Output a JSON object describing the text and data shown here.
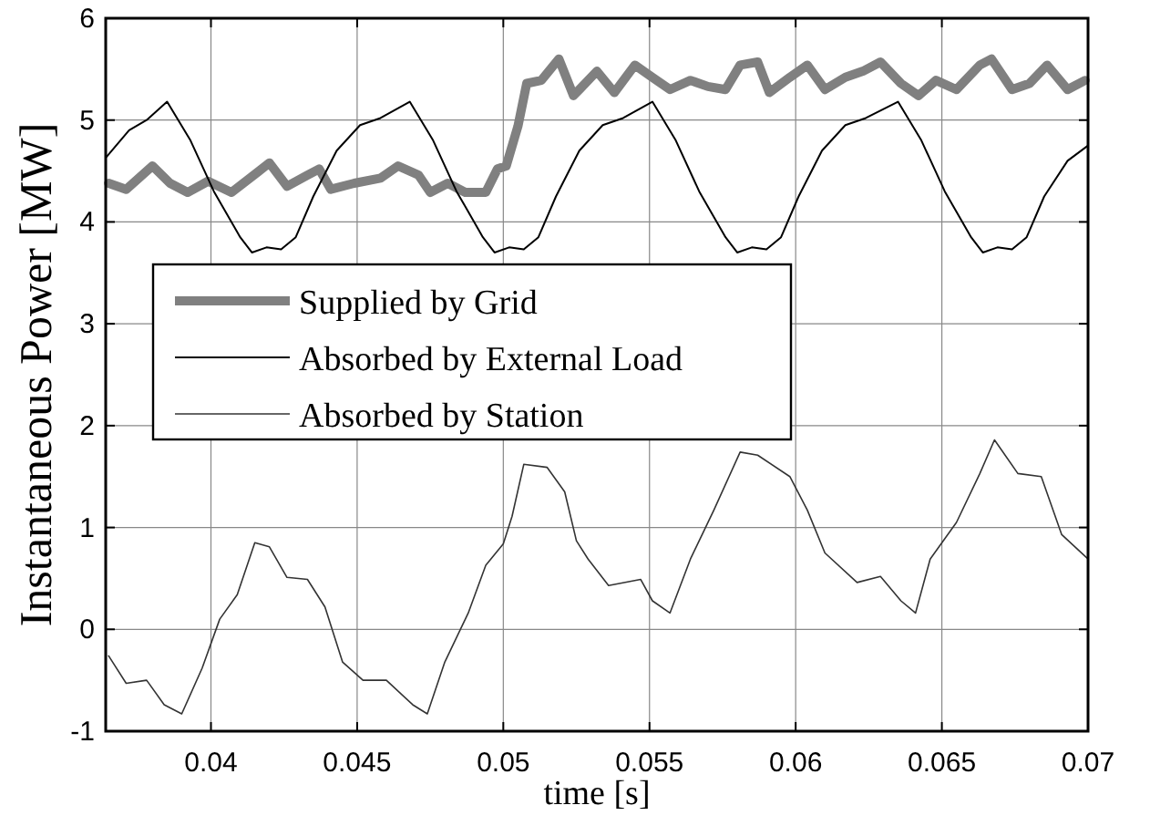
{
  "chart_data": {
    "type": "line",
    "xlabel": "time [s]",
    "ylabel": "Instantaneous Power [MW]",
    "xlim": [
      0.0364,
      0.07
    ],
    "xticks": [
      0.04,
      0.045,
      0.05,
      0.055,
      0.06,
      0.065,
      0.07
    ],
    "ylim": [
      -1,
      6
    ],
    "yticks": [
      -1,
      0,
      1,
      2,
      3,
      4,
      5,
      6
    ],
    "grid": true,
    "legend": "left",
    "line_style": "solid",
    "series": [
      {
        "name": "Supplied by Grid",
        "color": "#808080",
        "x": [
          0.0365,
          0.0371,
          0.038,
          0.0386,
          0.0392,
          0.0399,
          0.0407,
          0.0416,
          0.042,
          0.0426,
          0.0433,
          0.0437,
          0.0441,
          0.0449,
          0.0458,
          0.0464,
          0.0471,
          0.0475,
          0.0481,
          0.0487,
          0.0494,
          0.0498,
          0.0501,
          0.0505,
          0.0508,
          0.0513,
          0.0519,
          0.0524,
          0.0526,
          0.0532,
          0.0538,
          0.0545,
          0.0551,
          0.0557,
          0.0564,
          0.057,
          0.0576,
          0.0581,
          0.0587,
          0.0591,
          0.0598,
          0.0604,
          0.061,
          0.0617,
          0.0623,
          0.0629,
          0.0636,
          0.0642,
          0.0648,
          0.0655,
          0.0663,
          0.0667,
          0.0674,
          0.068,
          0.0686,
          0.0693,
          0.0699
        ],
        "values": [
          4.38,
          4.32,
          4.55,
          4.38,
          4.29,
          4.4,
          4.29,
          4.49,
          4.58,
          4.35,
          4.46,
          4.52,
          4.32,
          4.38,
          4.43,
          4.55,
          4.46,
          4.29,
          4.38,
          4.29,
          4.29,
          4.52,
          4.55,
          4.94,
          5.36,
          5.39,
          5.6,
          5.24,
          5.3,
          5.48,
          5.27,
          5.54,
          5.42,
          5.3,
          5.39,
          5.33,
          5.3,
          5.54,
          5.57,
          5.27,
          5.42,
          5.54,
          5.3,
          5.42,
          5.48,
          5.57,
          5.36,
          5.24,
          5.39,
          5.3,
          5.54,
          5.6,
          5.3,
          5.36,
          5.54,
          5.3,
          5.39
        ]
      },
      {
        "name": "Absorbed by External Load",
        "color": "#000000",
        "x": [
          0.0364,
          0.0372,
          0.0378,
          0.0385,
          0.0393,
          0.0401,
          0.041,
          0.0414,
          0.0419,
          0.0424,
          0.0429,
          0.0435,
          0.0443,
          0.0451,
          0.0458,
          0.0468,
          0.0476,
          0.0484,
          0.0493,
          0.0497,
          0.0502,
          0.0507,
          0.0512,
          0.0518,
          0.0526,
          0.0534,
          0.0541,
          0.0551,
          0.0559,
          0.0567,
          0.0576,
          0.058,
          0.0585,
          0.059,
          0.0595,
          0.0601,
          0.0609,
          0.0617,
          0.0624,
          0.0635,
          0.0643,
          0.0651,
          0.066,
          0.0664,
          0.0669,
          0.0674,
          0.0679,
          0.0685,
          0.0693,
          0.07
        ],
        "values": [
          4.63,
          4.9,
          5.0,
          5.18,
          4.8,
          4.3,
          3.85,
          3.7,
          3.75,
          3.73,
          3.85,
          4.25,
          4.7,
          4.95,
          5.02,
          5.18,
          4.8,
          4.3,
          3.85,
          3.7,
          3.75,
          3.73,
          3.85,
          4.25,
          4.7,
          4.95,
          5.02,
          5.18,
          4.8,
          4.3,
          3.85,
          3.7,
          3.75,
          3.73,
          3.85,
          4.25,
          4.7,
          4.95,
          5.02,
          5.18,
          4.8,
          4.3,
          3.85,
          3.7,
          3.75,
          3.73,
          3.85,
          4.25,
          4.6,
          4.75
        ]
      },
      {
        "name": "Absorbed by Station",
        "color": "#333333",
        "x": [
          0.0365,
          0.0371,
          0.0378,
          0.0384,
          0.039,
          0.0397,
          0.0403,
          0.0409,
          0.0415,
          0.042,
          0.0426,
          0.0433,
          0.0439,
          0.0445,
          0.0452,
          0.046,
          0.0469,
          0.0474,
          0.048,
          0.0488,
          0.0494,
          0.05,
          0.0503,
          0.0507,
          0.0515,
          0.0521,
          0.0525,
          0.0529,
          0.0536,
          0.0547,
          0.0551,
          0.0557,
          0.0564,
          0.0572,
          0.0581,
          0.0587,
          0.0598,
          0.0604,
          0.061,
          0.0621,
          0.0629,
          0.0636,
          0.0641,
          0.0646,
          0.0655,
          0.0663,
          0.0668,
          0.0676,
          0.0684,
          0.0691,
          0.07
        ],
        "values": [
          -0.26,
          -0.53,
          -0.5,
          -0.74,
          -0.83,
          -0.38,
          0.1,
          0.34,
          0.85,
          0.81,
          0.51,
          0.49,
          0.22,
          -0.32,
          -0.5,
          -0.5,
          -0.74,
          -0.83,
          -0.32,
          0.16,
          0.63,
          0.84,
          1.11,
          1.62,
          1.59,
          1.35,
          0.87,
          0.69,
          0.43,
          0.49,
          0.28,
          0.16,
          0.69,
          1.17,
          1.74,
          1.71,
          1.5,
          1.17,
          0.75,
          0.46,
          0.52,
          0.28,
          0.16,
          0.69,
          1.05,
          1.53,
          1.86,
          1.53,
          1.5,
          0.93,
          0.69
        ]
      }
    ]
  }
}
